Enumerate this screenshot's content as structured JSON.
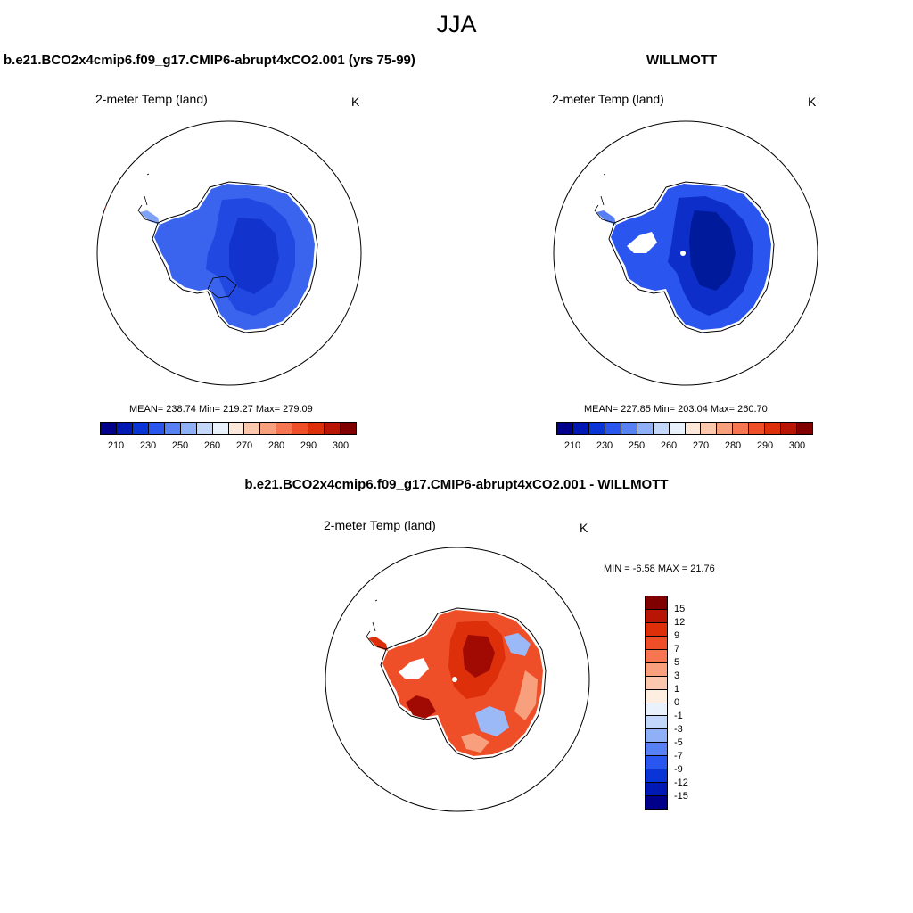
{
  "season_title": "JJA",
  "panel_left": {
    "case_title": "b.e21.BCO2x4cmip6.f09_g17.CMIP6-abrupt4xCO2.001 (yrs 75-99)",
    "variable": "2-meter Temp (land)",
    "units": "K",
    "stats": "MEAN= 238.74  Min= 219.27  Max= 279.09"
  },
  "panel_right": {
    "case_title": "WILLMOTT",
    "variable": "2-meter Temp (land)",
    "units": "K",
    "stats": "MEAN= 227.85  Min= 203.04  Max= 260.70"
  },
  "panel_diff": {
    "case_title": "b.e21.BCO2x4cmip6.f09_g17.CMIP6-abrupt4xCO2.001 - WILLMOTT",
    "variable": "2-meter Temp (land)",
    "units": "K",
    "stats": "MIN =  -6.58 MAX =  21.76"
  },
  "abs_colorbar": {
    "colors": [
      "#00008b",
      "#0018b4",
      "#0b34d6",
      "#2a55ee",
      "#5880f5",
      "#8fb0f7",
      "#c3d7fa",
      "#e8f1fc",
      "#fde7d9",
      "#fbc8ae",
      "#f8a07e",
      "#f57650",
      "#ee4f28",
      "#dc2f0a",
      "#b81505",
      "#800000"
    ],
    "tick_labels": [
      "210",
      "230",
      "250",
      "260",
      "270",
      "280",
      "290",
      "300"
    ]
  },
  "diff_colorbar": {
    "colors": [
      "#800000",
      "#b81505",
      "#dc2f0a",
      "#ee4f28",
      "#f57650",
      "#f8a07e",
      "#fbc8ae",
      "#fdeedf",
      "#e8f1fc",
      "#c3d7fa",
      "#8fb0f7",
      "#5880f5",
      "#2a55ee",
      "#0b34d6",
      "#0018b4",
      "#00008b"
    ],
    "tick_labels": [
      "15",
      "12",
      "9",
      "7",
      "5",
      "3",
      "1",
      "0",
      "-1",
      "-3",
      "-5",
      "-7",
      "-9",
      "-12",
      "-15"
    ]
  },
  "map_colors": {
    "left_outer": "#3a64ee",
    "left_inner": "#2148e0",
    "left_core": "#1234cc",
    "left_edge": "#7ea2f5",
    "right_outer": "#2a55ee",
    "right_inner": "#0d2ec8",
    "right_core": "#001a9c",
    "right_edge": "#5880f5",
    "diff_base": "#ee4f28",
    "diff_warm": "#dc2f0a",
    "diff_hot": "#a00a02",
    "diff_cool": "#9bb8f7",
    "diff_mild": "#f8a07e"
  }
}
